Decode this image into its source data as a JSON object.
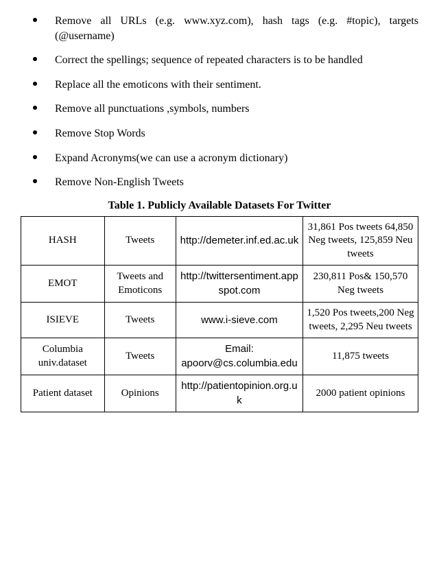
{
  "bullets": [
    "Remove all URLs (e.g. www.xyz.com), hash tags (e.g. #topic), targets (@username)",
    "Correct the spellings; sequence of repeated characters is to be handled",
    "Replace all the emoticons with their sentiment.",
    "Remove all punctuations ,symbols, numbers",
    "Remove Stop Words",
    "Expand Acronyms(we can use a acronym dictionary)",
    "Remove Non-English Tweets"
  ],
  "table": {
    "caption": "Table 1. Publicly Available Datasets For Twitter",
    "rows": [
      {
        "name": "HASH",
        "type": "Tweets",
        "source": "http://demeter.inf.ed.ac.uk",
        "stats": "31,861 Pos tweets 64,850 Neg tweets, 125,859 Neu tweets"
      },
      {
        "name": "EMOT",
        "type": "Tweets and Emoticons",
        "source": "http://twittersentiment.appspot.com",
        "stats": "230,811 Pos& 150,570 Neg tweets"
      },
      {
        "name": "ISIEVE",
        "type": "Tweets",
        "source": "www.i-sieve.com",
        "stats": "1,520 Pos tweets,200 Neg tweets, 2,295 Neu tweets"
      },
      {
        "name": "Columbia univ.dataset",
        "type": "Tweets",
        "source": "Email: apoorv@cs.columbia.edu",
        "stats": "11,875 tweets"
      },
      {
        "name": "Patient dataset",
        "type": "Opinions",
        "source": "http://patientopinion.org.uk",
        "stats": "2000 patient opinions"
      }
    ]
  }
}
